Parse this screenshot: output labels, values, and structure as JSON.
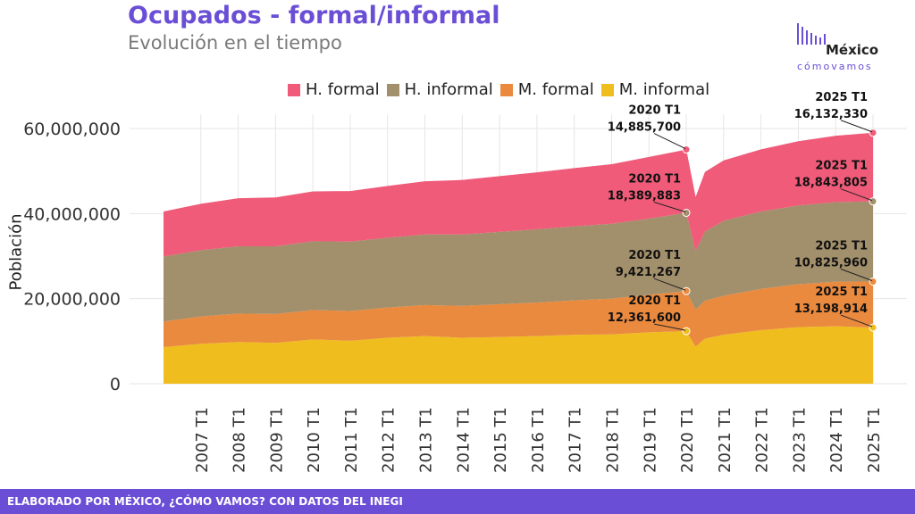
{
  "header": {
    "title": "Ocupados - formal/informal",
    "subtitle": "Evolución en el tiempo"
  },
  "logo": {
    "name": "México",
    "tagline": "cómovamos"
  },
  "footer": {
    "text": "ELABORADO POR MÉXICO, ¿CÓMO VAMOS? CON DATOS DEL INEGI"
  },
  "colors": {
    "accent": "#6a4fd6",
    "h_formal": "#ef5b79",
    "h_informal": "#a28f6b",
    "m_formal": "#ea8a3f",
    "m_informal": "#f0bd1f"
  },
  "chart_data": {
    "type": "area",
    "stacked": true,
    "ylabel": "Población",
    "ylim": [
      0,
      60000000
    ],
    "yticks": [
      "0",
      "20,000,000",
      "40,000,000",
      "60,000,000"
    ],
    "xticks": [
      "2007 T1",
      "2008 T1",
      "2009 T1",
      "2010 T1",
      "2011 T1",
      "2012 T1",
      "2013 T1",
      "2014 T1",
      "2015 T1",
      "2016 T1",
      "2017 T1",
      "2018 T1",
      "2019 T1",
      "2020 T1",
      "2021 T1",
      "2022 T1",
      "2023 T1",
      "2024 T1",
      "2025 T1"
    ],
    "legend": [
      "H. formal",
      "H. informal",
      "M. formal",
      "M. informal"
    ],
    "legend_position": "top",
    "grid": true,
    "x": [
      "2006 T1",
      "2007 T1",
      "2008 T1",
      "2009 T1",
      "2010 T1",
      "2011 T1",
      "2012 T1",
      "2013 T1",
      "2014 T1",
      "2015 T1",
      "2016 T1",
      "2017 T1",
      "2018 T1",
      "2019 T1",
      "2020 T1",
      "2020 T2",
      "2020 T3",
      "2021 T1",
      "2022 T1",
      "2023 T1",
      "2024 T1",
      "2025 T1"
    ],
    "series": [
      {
        "name": "M. informal",
        "values": [
          8600000,
          9400000,
          9800000,
          9600000,
          10400000,
          10100000,
          10800000,
          11200000,
          10800000,
          11000000,
          11200000,
          11500000,
          11600000,
          12100000,
          12361600,
          8700000,
          10600000,
          11500000,
          12600000,
          13300000,
          13500000,
          13198914
        ]
      },
      {
        "name": "M. formal",
        "values": [
          6000000,
          6400000,
          6700000,
          6800000,
          6900000,
          7000000,
          7100000,
          7300000,
          7500000,
          7700000,
          7900000,
          8100000,
          8400000,
          8800000,
          9421267,
          8700000,
          8900000,
          9200000,
          9700000,
          10100000,
          10500000,
          10825960
        ]
      },
      {
        "name": "H. informal",
        "values": [
          15300000,
          15600000,
          15800000,
          15900000,
          16200000,
          16300000,
          16400000,
          16600000,
          16800000,
          17000000,
          17200000,
          17400000,
          17600000,
          17900000,
          18389883,
          13700000,
          16300000,
          17600000,
          18200000,
          18500000,
          18700000,
          18843805
        ]
      },
      {
        "name": "H. formal",
        "values": [
          10600000,
          10900000,
          11300000,
          11500000,
          11700000,
          11900000,
          12200000,
          12500000,
          12800000,
          13100000,
          13400000,
          13700000,
          14000000,
          14500000,
          14885700,
          12800000,
          14000000,
          14200000,
          14600000,
          15100000,
          15600000,
          16132330
        ]
      }
    ],
    "annotations": [
      {
        "series": "H. formal",
        "x": "2020 T1",
        "label": "2020 T1",
        "value": "14,885,700"
      },
      {
        "series": "H. informal",
        "x": "2020 T1",
        "label": "2020 T1",
        "value": "18,389,883"
      },
      {
        "series": "M. formal",
        "x": "2020 T1",
        "label": "2020 T1",
        "value": "9,421,267"
      },
      {
        "series": "M. informal",
        "x": "2020 T1",
        "label": "2020 T1",
        "value": "12,361,600"
      },
      {
        "series": "H. formal",
        "x": "2025 T1",
        "label": "2025 T1",
        "value": "16,132,330"
      },
      {
        "series": "H. informal",
        "x": "2025 T1",
        "label": "2025 T1",
        "value": "18,843,805"
      },
      {
        "series": "M. formal",
        "x": "2025 T1",
        "label": "2025 T1",
        "value": "10,825,960"
      },
      {
        "series": "M. informal",
        "x": "2025 T1",
        "label": "2025 T1",
        "value": "13,198,914"
      }
    ]
  }
}
